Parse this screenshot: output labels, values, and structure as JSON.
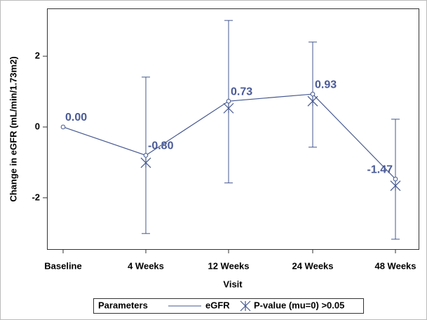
{
  "chart_data": {
    "type": "line",
    "xlabel": "Visit",
    "ylabel": "Change in eGFR (mL/min/1.73m2)",
    "categories": [
      "Baseline",
      "4 Weeks",
      "12 Weeks",
      "24 Weeks",
      "48 Weeks"
    ],
    "series": [
      {
        "name": "eGFR",
        "color": "#44578f",
        "values": [
          0,
          -0.8,
          0.73,
          0.93,
          -1.47
        ],
        "value_labels": [
          "0.00",
          "-0.80",
          "0.73",
          "0.93",
          "-1.47"
        ],
        "lower": [
          null,
          -3.01,
          -1.58,
          -0.57,
          -3.17
        ],
        "upper": [
          null,
          1.41,
          3.01,
          2.4,
          0.22
        ]
      },
      {
        "name": "P-value (mu=0) >0.05",
        "color": "#44578f",
        "marker": "star",
        "values": [
          null,
          -1.01,
          0.53,
          0.73,
          -1.66
        ]
      }
    ],
    "legend_title": "Parameters",
    "ylim": [
      -3.45,
      3.35
    ],
    "yticks": [
      -2,
      0,
      2
    ]
  }
}
